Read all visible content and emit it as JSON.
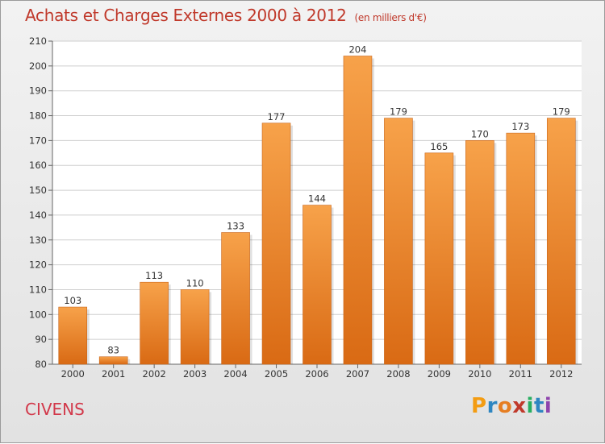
{
  "title": {
    "main": "Achats et Charges Externes 2000 à 2012",
    "unit": "(en milliers d'€)"
  },
  "commune": "CIVENS",
  "logo": {
    "letters": [
      "P",
      "r",
      "o",
      "x",
      "i",
      "t",
      "i"
    ],
    "colors": [
      "#f39c12",
      "#2e86c1",
      "#e67e22",
      "#c0392b",
      "#27ae60",
      "#2e86c1",
      "#8e44ad"
    ]
  },
  "colors": {
    "bar": "#f0882a",
    "title": "#c0392b",
    "commune": "#d2384a"
  },
  "chart_data": {
    "type": "bar",
    "title": "Achats et Charges Externes 2000 à 2012",
    "subtitle": "(en milliers d'€)",
    "xlabel": "",
    "ylabel": "",
    "categories": [
      "2000",
      "2001",
      "2002",
      "2003",
      "2004",
      "2005",
      "2006",
      "2007",
      "2008",
      "2009",
      "2010",
      "2011",
      "2012"
    ],
    "values": [
      103,
      83,
      113,
      110,
      133,
      177,
      144,
      204,
      179,
      165,
      170,
      173,
      179
    ],
    "ylim": [
      80,
      210
    ],
    "yticks": [
      80,
      90,
      100,
      110,
      120,
      130,
      140,
      150,
      160,
      170,
      180,
      190,
      200,
      210
    ],
    "grid": true,
    "legend": "none"
  }
}
